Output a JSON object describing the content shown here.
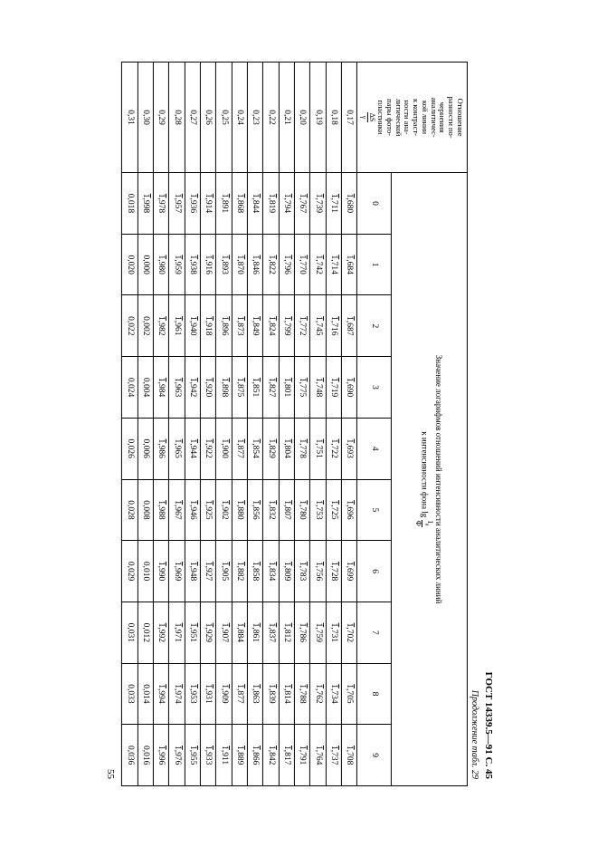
{
  "doc": {
    "header": "ГОСТ 14339.5—91 С. 45",
    "caption": "Продолжение табл. 29",
    "page_number": "55"
  },
  "table": {
    "row_header_html": "Отношение<br>разности по-<br>чернения<br>аналитичес-<br>кой линии<br>к контраст-<br>ности ана-<br>литической<br>пары фото-<br>пластинки<br><span class='frac'><span class='num'>ΔS</span><span class='den'>γ</span></span>",
    "col_group_header_html": "Значение логарифмов отношений интенсивности аналитических линий<br>к интенсивности фона lg <span class='frac'><span class='num'>I<sub>a</sub></span><span class='den'>Ф</span></span>",
    "col_headers": [
      "0",
      "1",
      "2",
      "3",
      "4",
      "5",
      "6",
      "7",
      "8",
      "9"
    ],
    "rows": [
      {
        "h": "0,17",
        "c": [
          "1,680",
          "1,684",
          "1,687",
          "1,690",
          "1,693",
          "1,696",
          "1,699",
          "1,702",
          "1,705",
          "1,708"
        ],
        "ov": true
      },
      {
        "h": "0,18",
        "c": [
          "1,711",
          "1,714",
          "1,716",
          "1,719",
          "1,722",
          "1,725",
          "1,728",
          "1,731",
          "1,734",
          "1,737"
        ],
        "ov": true
      },
      {
        "h": "0,19",
        "c": [
          "1,739",
          "1,742",
          "1,745",
          "1,748",
          "1,751",
          "1,753",
          "1,756",
          "1,759",
          "1,762",
          "1,764"
        ],
        "ov": true
      },
      {
        "h": "0,20",
        "c": [
          "1,767",
          "1,770",
          "1,772",
          "1,775",
          "1,778",
          "1,780",
          "1,783",
          "1,786",
          "1,788",
          "1,791"
        ],
        "ov": true
      },
      {
        "h": "0,21",
        "c": [
          "1,794",
          "1,796",
          "1,799",
          "1,801",
          "1,804",
          "1,807",
          "1,809",
          "1,812",
          "1,814",
          "1,817"
        ],
        "ov": true
      },
      {
        "h": "0,22",
        "c": [
          "1,819",
          "1,822",
          "1,824",
          "1,827",
          "1,829",
          "1,832",
          "1,834",
          "1,837",
          "1,839",
          "1,842"
        ],
        "ov": true
      },
      {
        "h": "0,23",
        "c": [
          "1,844",
          "1,846",
          "1,849",
          "1,851",
          "1,854",
          "1,856",
          "1,858",
          "1,861",
          "1,863",
          "1,866"
        ],
        "ov": true
      },
      {
        "h": "0,24",
        "c": [
          "1,868",
          "1,870",
          "1,873",
          "1,875",
          "1,877",
          "1,880",
          "1,882",
          "1,884",
          "1,877",
          "1,889"
        ],
        "ov": true
      },
      {
        "h": "0,25",
        "c": [
          "1,891",
          "1,893",
          "1,896",
          "1,898",
          "1,900",
          "1,902",
          "1,905",
          "1,907",
          "1,909",
          "1,911"
        ],
        "ov": true
      },
      {
        "h": "0,26",
        "c": [
          "1,914",
          "1,916",
          "1,918",
          "1,920",
          "1,922",
          "1,925",
          "1,927",
          "1,929",
          "1,931",
          "1,933"
        ],
        "ov": true
      },
      {
        "h": "0,27",
        "c": [
          "1,936",
          "1,938",
          "1,940",
          "1,942",
          "1,944",
          "1,946",
          "1,948",
          "1,951",
          "1,953",
          "1,955"
        ],
        "ov": true
      },
      {
        "h": "0,28",
        "c": [
          "1,957",
          "1,959",
          "1,961",
          "1,963",
          "1,965",
          "1,967",
          "1,969",
          "1,971",
          "1,974",
          "1,976"
        ],
        "ov": true
      },
      {
        "h": "0,29",
        "c": [
          "1,978",
          "1,980",
          "1,982",
          "1,984",
          "1,986",
          "1,988",
          "1,990",
          "1,992",
          "1,994",
          "1,996"
        ],
        "ov": true
      },
      {
        "h": "0,30",
        "c": [
          "1,998",
          "0,000",
          "0,002",
          "0,004",
          "0,006",
          "0,008",
          "0,010",
          "0,012",
          "0,014",
          "0,016"
        ],
        "ov": true,
        "ov_first_only": true
      },
      {
        "h": "0,31",
        "c": [
          "0,018",
          "0,020",
          "0,022",
          "0,024",
          "0,026",
          "0,028",
          "0,029",
          "0,031",
          "0,033",
          "0,036"
        ],
        "ov": false
      }
    ]
  }
}
